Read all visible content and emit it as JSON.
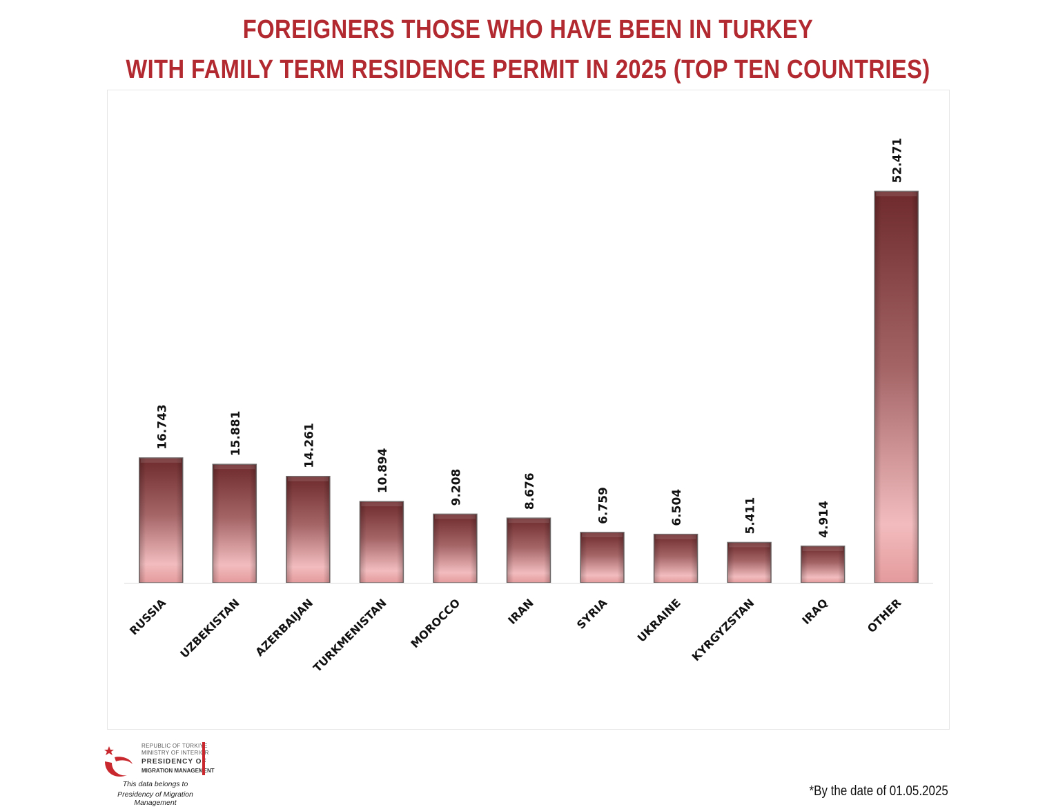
{
  "header": {
    "title_line1": "FOREIGNERS THOSE WHO HAVE BEEN IN TURKEY",
    "title_line2": "WITH FAMILY TERM RESIDENCE PERMIT IN 2025 (TOP TEN COUNTRIES)"
  },
  "chart_data": {
    "type": "bar",
    "title": "FOREIGNERS THOSE WHO HAVE BEEN IN TURKEY WITH FAMILY TERM RESIDENCE PERMIT IN 2025 (TOP TEN COUNTRIES)",
    "categories": [
      "RUSSIA",
      "UZBEKISTAN",
      "AZERBAIJAN",
      "TURKMENISTAN",
      "MOROCCO",
      "IRAN",
      "SYRIA",
      "UKRAINE",
      "KYRGYZSTAN",
      "IRAQ",
      "OTHER"
    ],
    "values": [
      16743,
      15881,
      14261,
      10894,
      9208,
      8676,
      6759,
      6504,
      5411,
      4914,
      52471
    ],
    "value_labels": [
      "16.743",
      "15.881",
      "14.261",
      "10.894",
      "9.208",
      "8.676",
      "6.759",
      "6.504",
      "5.411",
      "4.914",
      "52.471"
    ],
    "xlabel": "",
    "ylabel": "",
    "ylim": [
      0,
      66000
    ],
    "grid": false,
    "legend": "none",
    "colors": {
      "bar_top": "#6e2a2c",
      "bar_bottom": "#f2b8ba",
      "bar_edge": "#7a7272",
      "axis": "#d9d9d9",
      "title": "#b22a30"
    }
  },
  "logo": {
    "line1": "REPUBLIC OF TÜRKIYE",
    "line2": "MINISTRY OF INTERIOR",
    "line3": "PRESIDENCY OF",
    "line4": "MIGRATION MANAGEMENT"
  },
  "footer": {
    "belongs_line1": "This data belongs to",
    "belongs_line2": "Presidency of Migration Management",
    "date_note": "*By the date of  01.05.2025"
  }
}
